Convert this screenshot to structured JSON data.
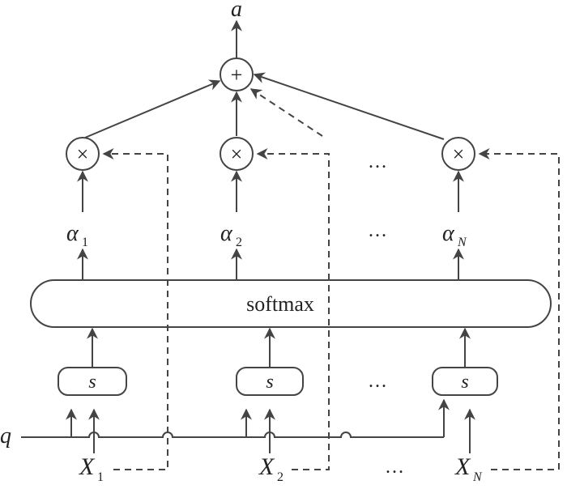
{
  "output": {
    "symbol": "a"
  },
  "query": {
    "symbol": "q"
  },
  "sum_node": {
    "symbol": "+"
  },
  "multiply_node": {
    "symbol": "×"
  },
  "softmax": {
    "label": "softmax"
  },
  "score_fn": {
    "label": "s"
  },
  "ellipsis": "…",
  "inputs": [
    {
      "base": "X",
      "sub": "1"
    },
    {
      "base": "X",
      "sub": "2"
    },
    {
      "base": "X",
      "sub": "N"
    }
  ],
  "weights": [
    {
      "base": "α",
      "sub": "1"
    },
    {
      "base": "α",
      "sub": "2"
    },
    {
      "base": "α",
      "sub": "N"
    }
  ]
}
